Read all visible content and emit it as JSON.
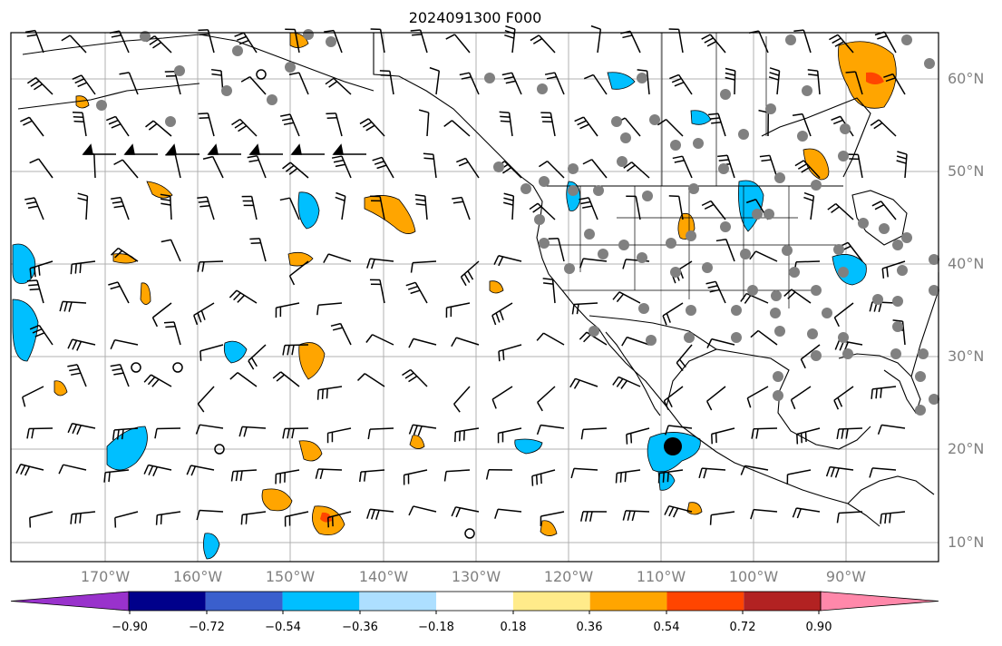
{
  "title": "2024091300 F000",
  "lat_labels": [
    "60°N",
    "50°N",
    "40°N",
    "30°N",
    "20°N",
    "10°N"
  ],
  "lon_labels": [
    "170°W",
    "160°W",
    "150°W",
    "140°W",
    "130°W",
    "120°W",
    "110°W",
    "100°W",
    "90°W"
  ],
  "colorbar": {
    "colors": [
      "#9932CC",
      "#00008B",
      "#3A5FCD",
      "#00BFFF",
      "#ADDFFF",
      "#FFFFFF",
      "#FFEB8A",
      "#FFA500",
      "#FF4500",
      "#B22222",
      "#FF88AA"
    ],
    "tick_labels": [
      "−0.90",
      "−0.72",
      "−0.54",
      "−0.36",
      "−0.18",
      "0.18",
      "0.36",
      "0.54",
      "0.72",
      "0.90"
    ]
  }
}
